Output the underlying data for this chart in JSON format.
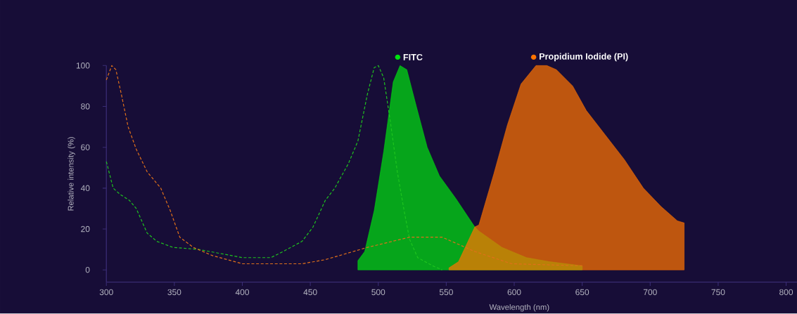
{
  "chart_data": {
    "type": "area",
    "xlabel": "Wavelength (nm)",
    "ylabel": "Relative intensity (%)",
    "xlim": [
      300,
      808
    ],
    "ylim": [
      -6,
      100
    ],
    "xticks": [
      300,
      350,
      400,
      450,
      500,
      550,
      600,
      650,
      700,
      750,
      800
    ],
    "yticks": [
      0,
      20,
      40,
      60,
      80,
      100
    ],
    "grid": false,
    "legend": "top",
    "series": [
      {
        "type": "line",
        "line_style": "dashed",
        "color": "#1fc41f",
        "x": [
          300,
          305,
          310,
          317,
          322,
          330,
          337,
          349,
          368,
          384,
          400,
          421,
          430,
          444,
          452,
          461,
          468,
          478,
          485,
          492,
          497,
          500,
          504,
          509,
          514,
          519,
          523,
          529,
          540,
          547
        ],
        "values": [
          53,
          40,
          37,
          34,
          30,
          18,
          14,
          11,
          10,
          8,
          6,
          6,
          9,
          14,
          21,
          34,
          40,
          52,
          63,
          86,
          99,
          100,
          94,
          72,
          48,
          29,
          15,
          6,
          2,
          0
        ]
      },
      {
        "type": "line",
        "line_style": "dashed",
        "color": "#e0701a",
        "x": [
          300,
          304,
          307,
          311,
          316,
          322,
          330,
          340,
          347,
          354,
          364,
          378,
          400,
          418,
          444,
          461,
          492,
          523,
          547,
          571,
          598,
          650
        ],
        "values": [
          93,
          100,
          98,
          86,
          70,
          59,
          48,
          40,
          29,
          16,
          11,
          7,
          3,
          3,
          3,
          5,
          11,
          16,
          16,
          9,
          3,
          2
        ]
      },
      {
        "name": "FITC",
        "color": "#00e010",
        "x": [
          485,
          485,
          490,
          497,
          504,
          511,
          516,
          521,
          528,
          536,
          545,
          557,
          571,
          574,
          591,
          609,
          626,
          650,
          650
        ],
        "values": [
          0,
          4.5,
          9,
          29,
          58,
          92,
          100,
          98,
          80,
          60,
          46,
          35,
          21,
          19,
          11,
          6,
          4,
          2,
          0
        ]
      },
      {
        "name": "Propidium Iodide (PI)",
        "color": "#ff7300",
        "x": [
          552,
          559,
          571,
          574,
          585,
          595,
          605,
          616,
          624,
          631,
          643,
          653,
          667,
          681,
          695,
          708,
          720,
          725,
          725
        ],
        "values": [
          1,
          4,
          21,
          22,
          47,
          71,
          91,
          100,
          100,
          98,
          90,
          78,
          66,
          54,
          40,
          31,
          24,
          23,
          0
        ]
      }
    ]
  }
}
